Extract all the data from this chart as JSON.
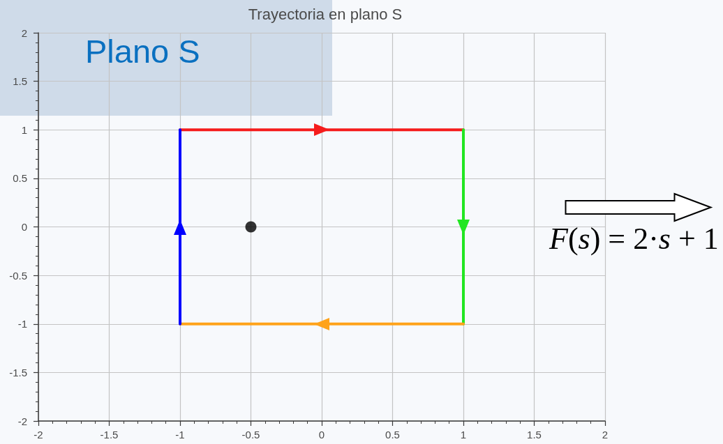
{
  "chart_data": {
    "type": "line",
    "title": "Trayectoria en plano S",
    "annotations": [
      "Plano S",
      "F(s) = 2·s + 1"
    ],
    "xlim": [
      -2,
      2
    ],
    "ylim": [
      -2,
      2
    ],
    "xticks": [
      -2,
      -1.5,
      -1,
      -0.5,
      0,
      0.5,
      1,
      1.5,
      2
    ],
    "yticks": [
      -2,
      -1.5,
      -1,
      -0.5,
      0,
      0.5,
      1,
      1.5,
      2
    ],
    "grid": true,
    "line_style": "solid",
    "series": [
      {
        "color": "#f51c1c",
        "x": [
          -1,
          1
        ],
        "values": [
          1,
          1
        ]
      },
      {
        "color": "#22e622",
        "x": [
          1,
          1
        ],
        "values": [
          1,
          -1
        ]
      },
      {
        "color": "#ffa31a",
        "x": [
          1,
          -1
        ],
        "values": [
          -1,
          -1
        ]
      },
      {
        "color": "#0000ff",
        "x": [
          -1,
          -1
        ],
        "values": [
          -1,
          1
        ]
      },
      {
        "type": "scatter",
        "color": "#000000",
        "x": [
          -0.5
        ],
        "values": [
          0
        ],
        "marker": "circle"
      }
    ]
  }
}
